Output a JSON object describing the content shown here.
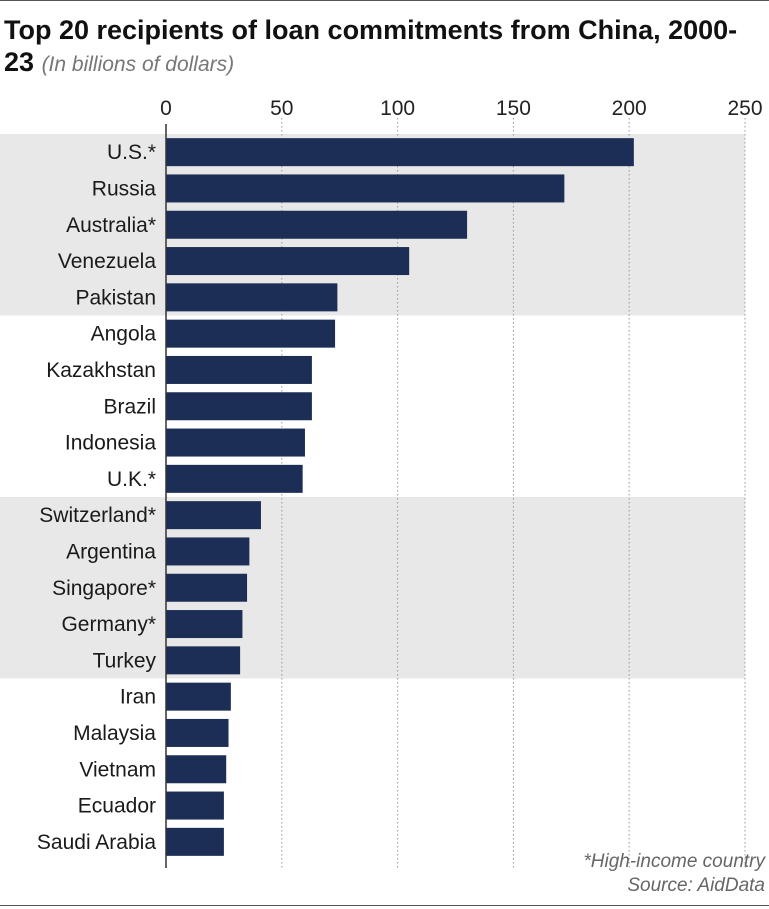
{
  "title": "Top 20 recipients of loan commitments from China, 2000-23",
  "subtitle": "(In billions of dollars)",
  "footnote": "*High-income country",
  "source": "Source: AidData",
  "colors": {
    "bar": "#1c2e55",
    "band": "#e8e8e8",
    "grid": "#999999",
    "axis": "#333333"
  },
  "chart_data": {
    "type": "bar",
    "orientation": "horizontal",
    "title": "Top 20 recipients of loan commitments from China, 2000-23",
    "xlabel": "In billions of dollars",
    "ylabel": "",
    "xlim": [
      0,
      250
    ],
    "ticks": [
      0,
      50,
      100,
      150,
      200,
      250
    ],
    "tick_labels": [
      "0",
      "50",
      "100",
      "150",
      "200",
      "250"
    ],
    "grid": true,
    "categories": [
      "U.S.*",
      "Russia",
      "Australia*",
      "Venezuela",
      "Pakistan",
      "Angola",
      "Kazakhstan",
      "Brazil",
      "Indonesia",
      "U.K.*",
      "Switzerland*",
      "Argentina",
      "Singapore*",
      "Germany*",
      "Turkey",
      "Iran",
      "Malaysia",
      "Vietnam",
      "Ecuador",
      "Saudi Arabia"
    ],
    "values": [
      202,
      172,
      130,
      105,
      74,
      73,
      63,
      63,
      60,
      59,
      41,
      36,
      35,
      33,
      32,
      28,
      27,
      26,
      25,
      25
    ]
  }
}
